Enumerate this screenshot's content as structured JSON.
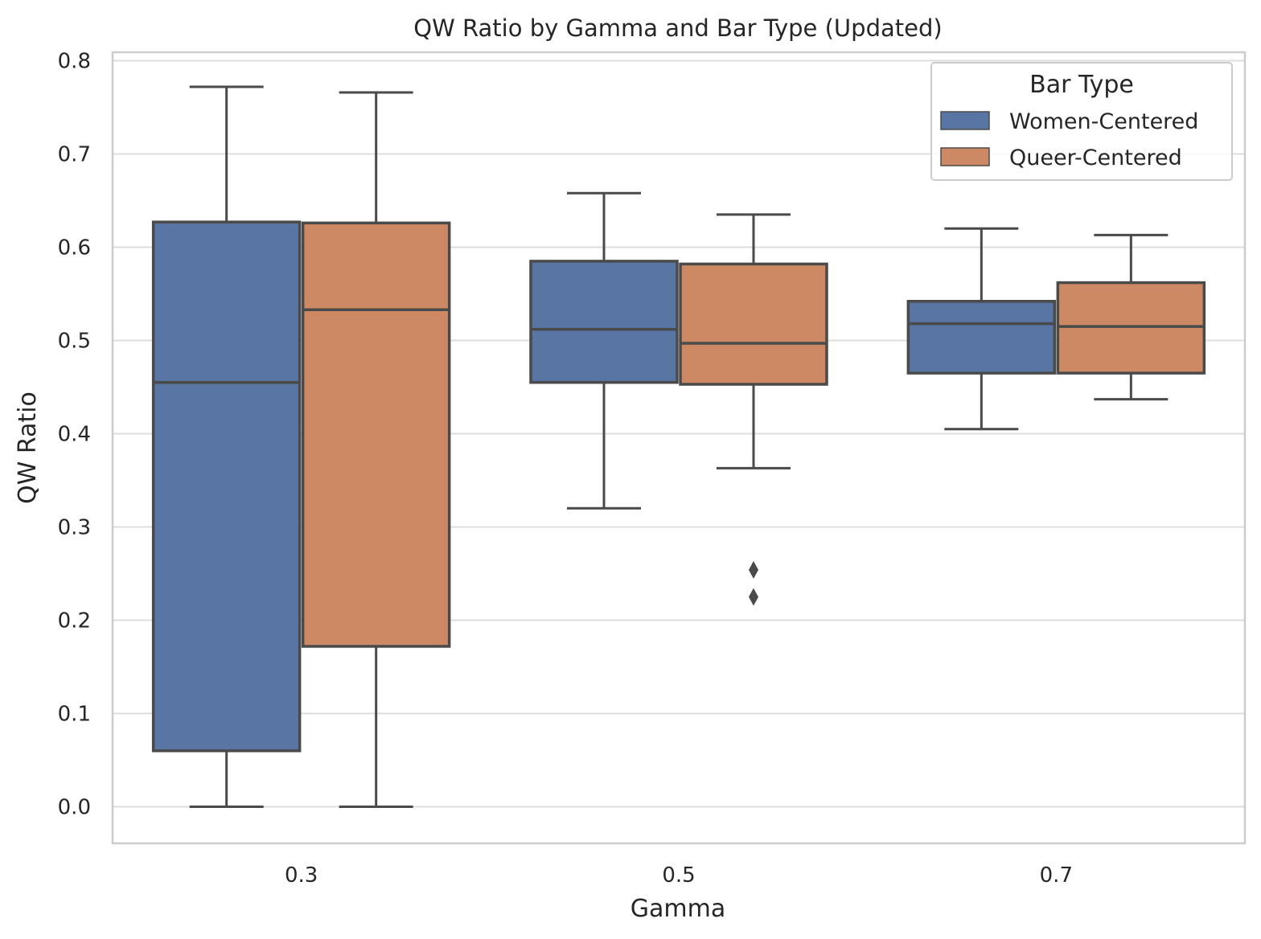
{
  "chart_data": {
    "type": "box",
    "title": "QW Ratio by Gamma and Bar Type (Updated)",
    "xlabel": "Gamma",
    "ylabel": "QW Ratio",
    "categories": [
      "0.3",
      "0.5",
      "0.7"
    ],
    "ylim": [
      -0.04,
      0.81
    ],
    "yticks": [
      0.0,
      0.1,
      0.2,
      0.3,
      0.4,
      0.5,
      0.6,
      0.7,
      0.8
    ],
    "ytick_labels": [
      "0.0",
      "0.1",
      "0.2",
      "0.3",
      "0.4",
      "0.5",
      "0.6",
      "0.7",
      "0.8"
    ],
    "grid": true,
    "legend": {
      "title": "Bar Type",
      "placement": "top-right"
    },
    "series": [
      {
        "name": "Women-Centered",
        "color": "#5875a4",
        "boxes": [
          {
            "whisker_low": 0.0,
            "q1": 0.06,
            "median": 0.455,
            "q3": 0.627,
            "whisker_high": 0.772,
            "outliers": []
          },
          {
            "whisker_low": 0.32,
            "q1": 0.455,
            "median": 0.512,
            "q3": 0.585,
            "whisker_high": 0.658,
            "outliers": []
          },
          {
            "whisker_low": 0.405,
            "q1": 0.465,
            "median": 0.518,
            "q3": 0.542,
            "whisker_high": 0.62,
            "outliers": []
          }
        ]
      },
      {
        "name": "Queer-Centered",
        "color": "#cc8963",
        "boxes": [
          {
            "whisker_low": 0.0,
            "q1": 0.172,
            "median": 0.533,
            "q3": 0.626,
            "whisker_high": 0.766,
            "outliers": []
          },
          {
            "whisker_low": 0.363,
            "q1": 0.453,
            "median": 0.497,
            "q3": 0.582,
            "whisker_high": 0.635,
            "outliers": [
              0.254,
              0.225
            ]
          },
          {
            "whisker_low": 0.437,
            "q1": 0.465,
            "median": 0.515,
            "q3": 0.562,
            "whisker_high": 0.613,
            "outliers": []
          }
        ]
      }
    ],
    "line_color": "#4a4a4a",
    "grid_color": "#dddddd",
    "frame_color": "#cccccc"
  }
}
